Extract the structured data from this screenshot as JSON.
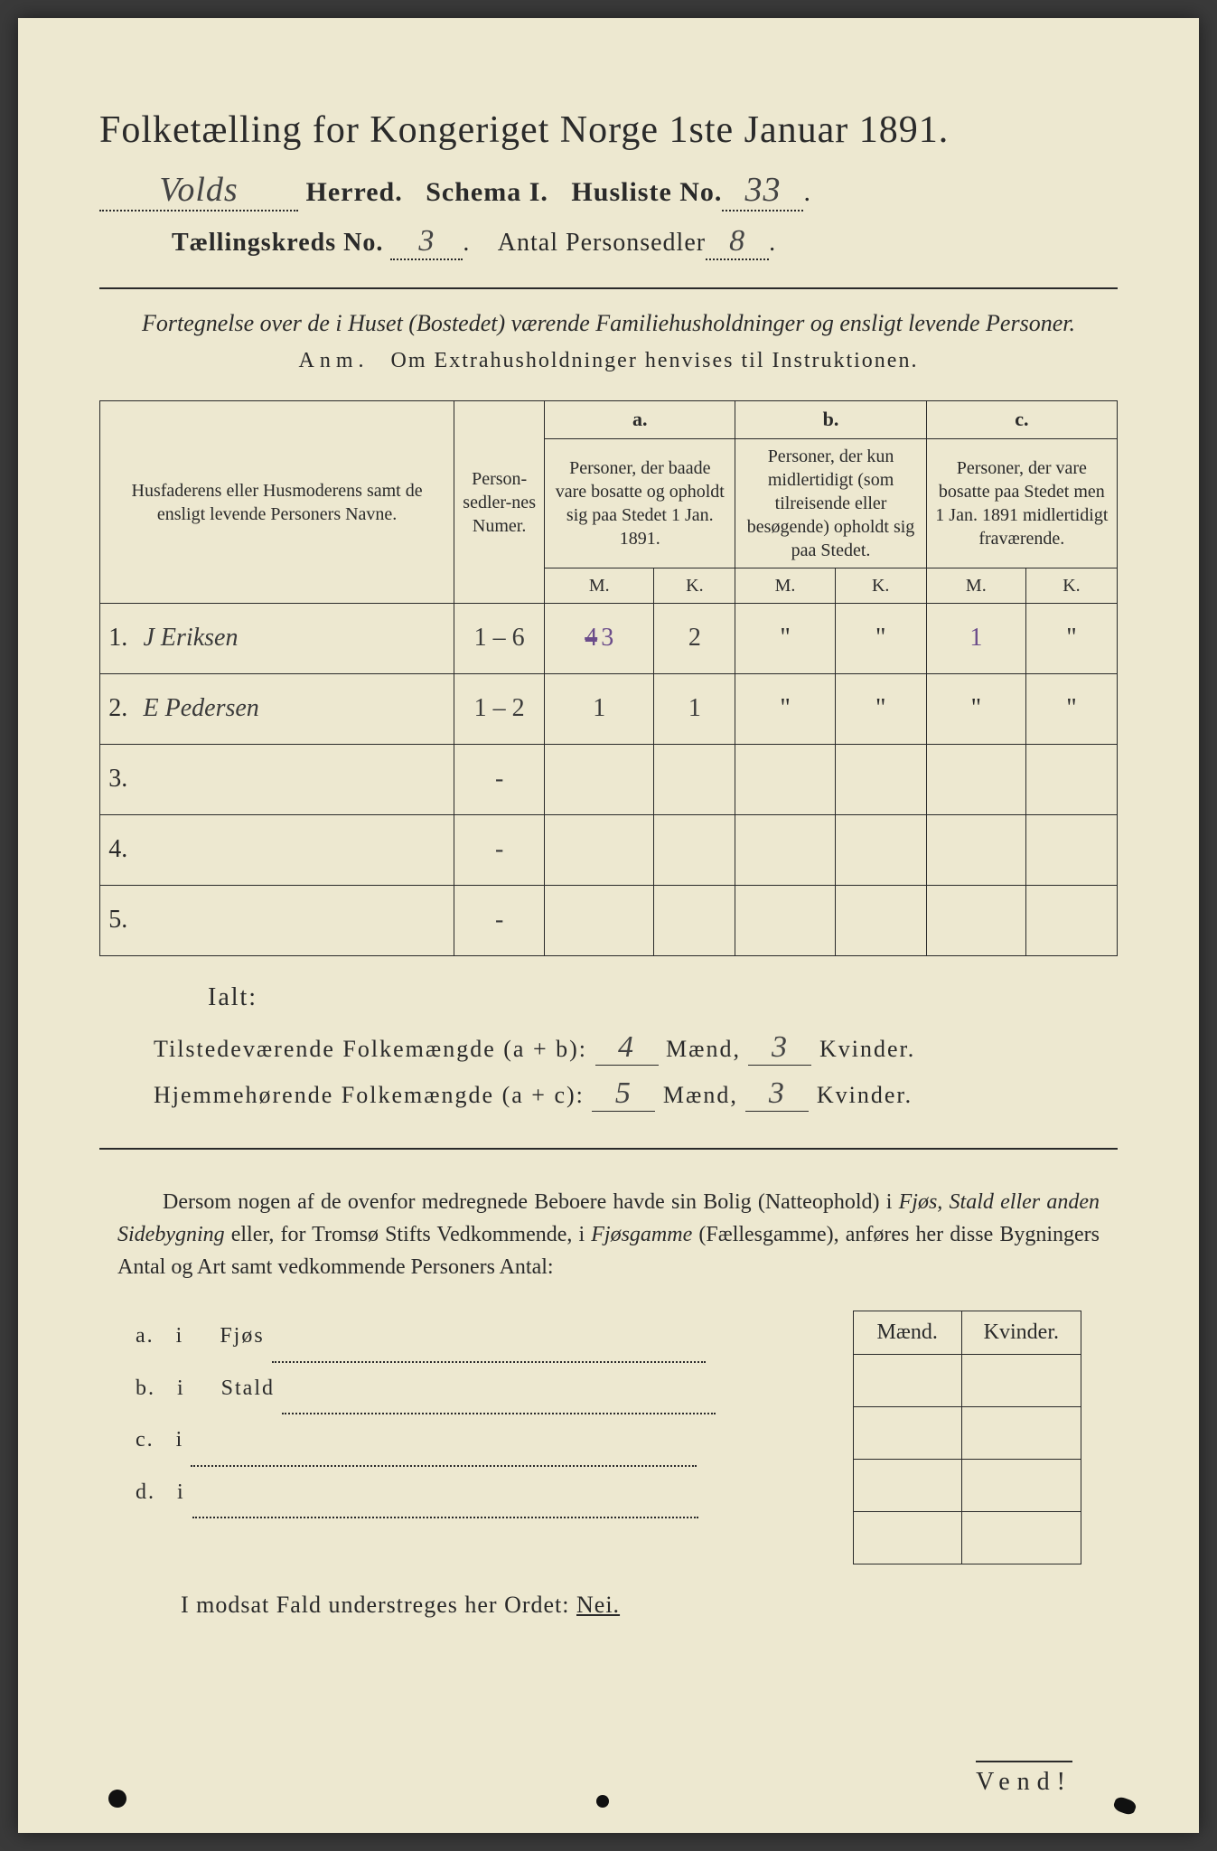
{
  "colors": {
    "paper": "#ede8d0",
    "ink": "#2a2a2a",
    "handwriting": "#3a3a3a",
    "purple_ink": "#6b4c8a",
    "background": "#3a3a3a"
  },
  "title": "Folketælling for Kongeriget Norge 1ste Januar 1891.",
  "header": {
    "herred_value": "Volds",
    "herred_label": "Herred.",
    "schema_label": "Schema I.",
    "husliste_label": "Husliste No.",
    "husliste_value": "33",
    "kreds_label": "Tællingskreds No.",
    "kreds_value": "3",
    "antal_label": "Antal Personsedler",
    "antal_value": "8"
  },
  "subtitle": "Fortegnelse over de i Huset (Bostedet) værende Familiehusholdninger og ensligt levende Personer.",
  "anm": {
    "label": "Anm.",
    "text": "Om Extrahusholdninger henvises til Instruktionen."
  },
  "table": {
    "headers": {
      "names": "Husfaderens eller Husmoderens samt de ensligt levende Personers Navne.",
      "numer": "Person-sedler-nes Numer.",
      "col_a_label": "a.",
      "col_a": "Personer, der baade vare bosatte og opholdt sig paa Stedet 1 Jan. 1891.",
      "col_b_label": "b.",
      "col_b": "Personer, der kun midlertidigt (som tilreisende eller besøgende) opholdt sig paa Stedet.",
      "col_c_label": "c.",
      "col_c": "Personer, der vare bosatte paa Stedet men 1 Jan. 1891 midlertidigt fraværende.",
      "m": "M.",
      "k": "K."
    },
    "rows": [
      {
        "num": "1.",
        "name": "J Eriksen",
        "numer": "1 – 6",
        "a_m_strike": "4",
        "a_m": "3",
        "a_k": "2",
        "b_m": "\"",
        "b_k": "\"",
        "c_m": "1",
        "c_k": "\""
      },
      {
        "num": "2.",
        "name": "E Pedersen",
        "numer": "1 – 2",
        "a_m_strike": "",
        "a_m": "1",
        "a_k": "1",
        "b_m": "\"",
        "b_k": "\"",
        "c_m": "\"",
        "c_k": "\""
      },
      {
        "num": "3.",
        "name": "",
        "numer": "-",
        "a_m_strike": "",
        "a_m": "",
        "a_k": "",
        "b_m": "",
        "b_k": "",
        "c_m": "",
        "c_k": ""
      },
      {
        "num": "4.",
        "name": "",
        "numer": "-",
        "a_m_strike": "",
        "a_m": "",
        "a_k": "",
        "b_m": "",
        "b_k": "",
        "c_m": "",
        "c_k": ""
      },
      {
        "num": "5.",
        "name": "",
        "numer": "-",
        "a_m_strike": "",
        "a_m": "",
        "a_k": "",
        "b_m": "",
        "b_k": "",
        "c_m": "",
        "c_k": ""
      }
    ]
  },
  "ialt_label": "Ialt:",
  "summary": {
    "line1_label": "Tilstedeværende Folkemængde (a + b):",
    "line1_m": "4",
    "line1_k": "3",
    "line2_label": "Hjemmehørende Folkemængde (a + c):",
    "line2_m": "5",
    "line2_k": "3",
    "maend": "Mænd,",
    "kvinder": "Kvinder."
  },
  "paragraph": "Dersom nogen af de ovenfor medregnede Beboere havde sin Bolig (Natteophold) i Fjøs, Stald eller anden Sidebygning eller, for Tromsø Stifts Vedkommende, i Fjøsgamme (Fællesgamme), anføres her disse Bygningers Antal og Art samt vedkommende Personers Antal:",
  "buildings": {
    "header_m": "Mænd.",
    "header_k": "Kvinder.",
    "rows": [
      {
        "label": "a.",
        "i": "i",
        "name": "Fjøs"
      },
      {
        "label": "b.",
        "i": "i",
        "name": "Stald"
      },
      {
        "label": "c.",
        "i": "i",
        "name": ""
      },
      {
        "label": "d.",
        "i": "i",
        "name": ""
      }
    ]
  },
  "nei_line": {
    "prefix": "I modsat Fald understreges her Ordet:",
    "word": "Nei."
  },
  "vend": "Vend!"
}
